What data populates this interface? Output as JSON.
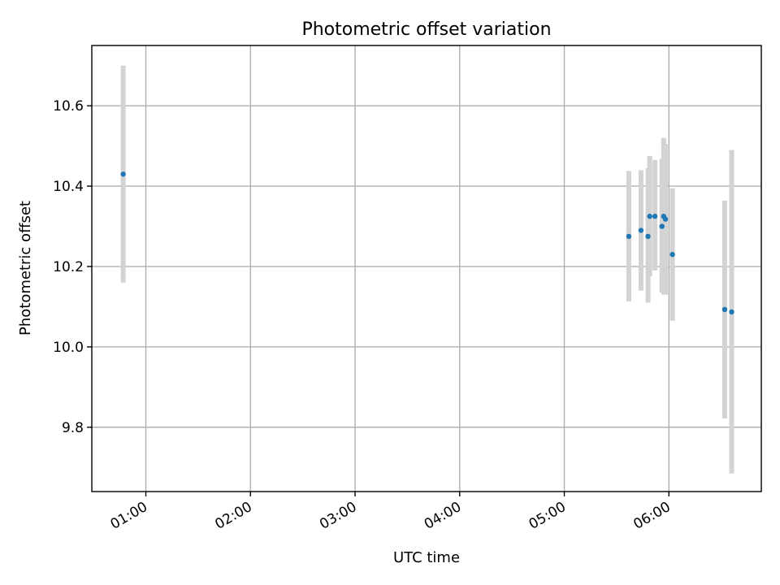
{
  "chart_data": {
    "type": "scatter",
    "title": "Photometric offset variation",
    "xlabel": "UTC time",
    "ylabel": "Photometric offset",
    "xlim": [
      "00:29",
      "06:53"
    ],
    "ylim": [
      9.64,
      10.75
    ],
    "grid": true,
    "x_ticks": [
      "01:00",
      "02:00",
      "03:00",
      "04:00",
      "05:00",
      "06:00"
    ],
    "y_ticks": [
      9.8,
      10.0,
      10.2,
      10.4,
      10.6
    ],
    "colors": {
      "point": "#1f77b4",
      "errorbar": "#d3d3d3",
      "grid": "#b0b0b0"
    },
    "points": [
      {
        "x": "00:47",
        "y": 10.43,
        "yerr_low": 10.16,
        "yerr_high": 10.7
      },
      {
        "x": "05:37",
        "y": 10.275,
        "yerr_low": 10.113,
        "yerr_high": 10.438
      },
      {
        "x": "05:44",
        "y": 10.29,
        "yerr_low": 10.14,
        "yerr_high": 10.44
      },
      {
        "x": "05:48",
        "y": 10.275,
        "yerr_low": 10.11,
        "yerr_high": 10.445
      },
      {
        "x": "05:49",
        "y": 10.325,
        "yerr_low": 10.175,
        "yerr_high": 10.475
      },
      {
        "x": "05:52",
        "y": 10.325,
        "yerr_low": 10.19,
        "yerr_high": 10.465
      },
      {
        "x": "05:56",
        "y": 10.3,
        "yerr_low": 10.135,
        "yerr_high": 10.468
      },
      {
        "x": "05:57",
        "y": 10.325,
        "yerr_low": 10.13,
        "yerr_high": 10.52
      },
      {
        "x": "05:58",
        "y": 10.318,
        "yerr_low": 10.13,
        "yerr_high": 10.505
      },
      {
        "x": "06:02",
        "y": 10.23,
        "yerr_low": 10.065,
        "yerr_high": 10.395
      },
      {
        "x": "06:32",
        "y": 10.093,
        "yerr_low": 9.822,
        "yerr_high": 10.364
      },
      {
        "x": "06:36",
        "y": 10.087,
        "yerr_low": 9.685,
        "yerr_high": 10.49
      }
    ]
  }
}
